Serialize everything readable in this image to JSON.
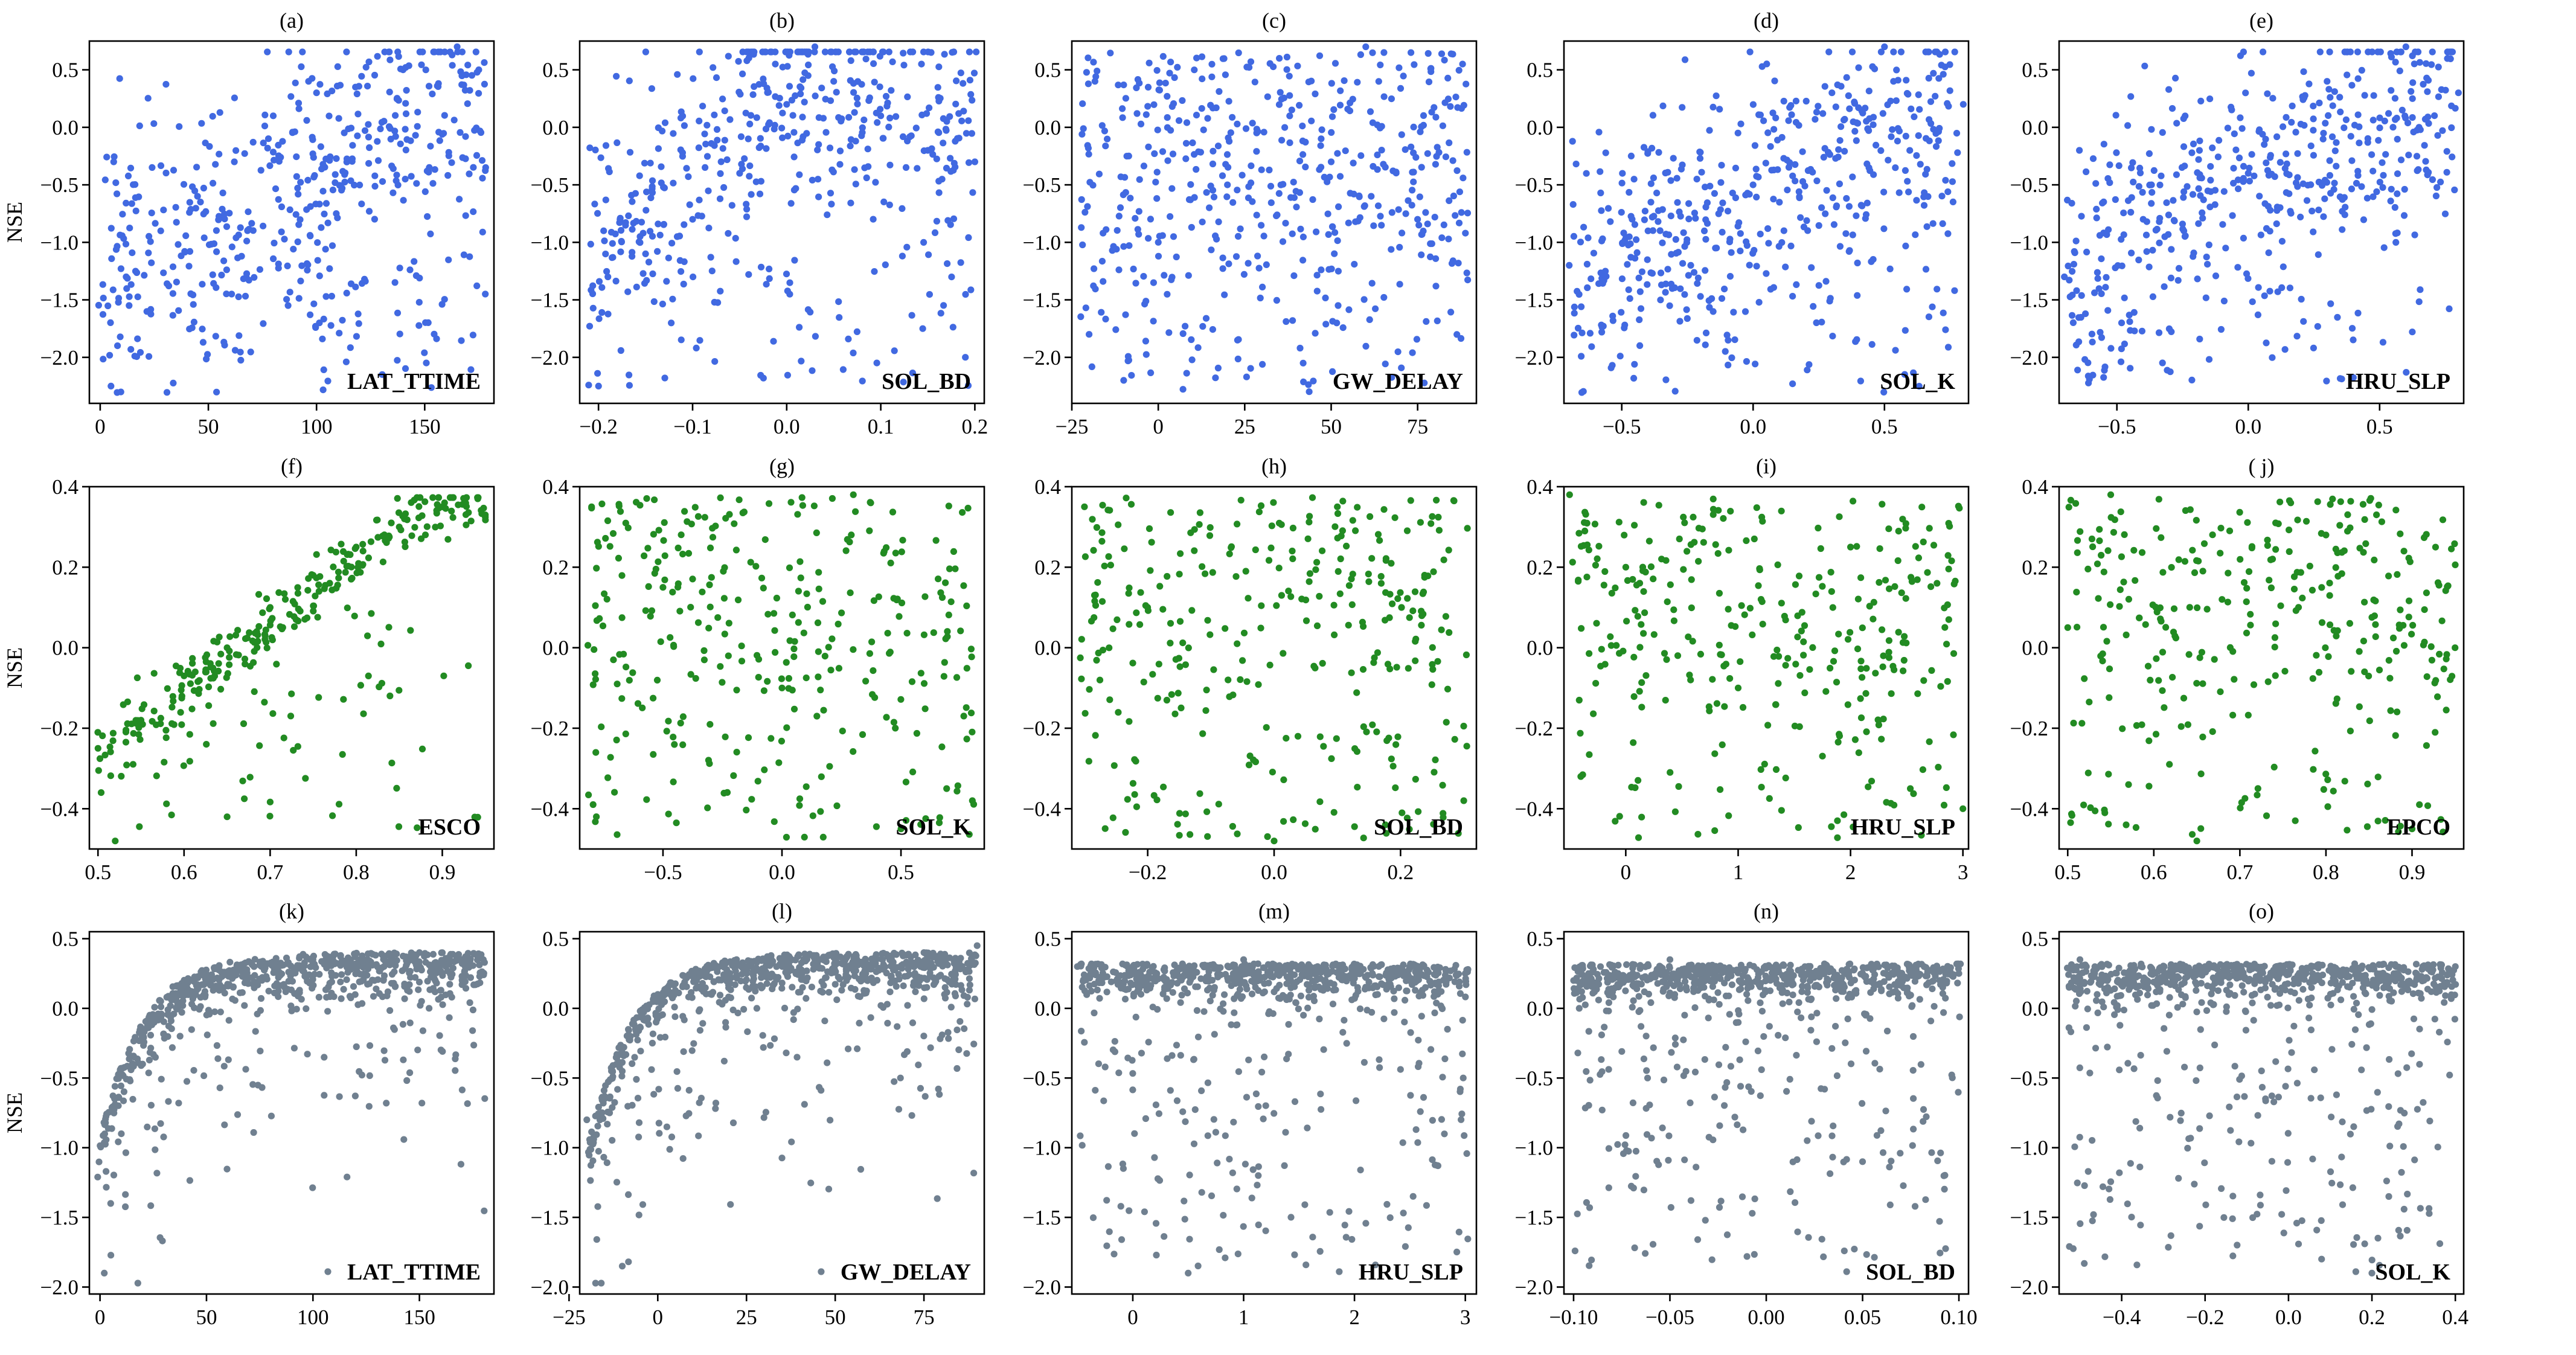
{
  "figure": {
    "ylabel": "NSE",
    "dot_radius": 5.6
  },
  "rows": [
    {
      "color": "#4169e1",
      "ylim": [
        -2.4,
        0.75
      ],
      "yticks": [
        0.5,
        0.0,
        -0.5,
        -1.0,
        -1.5,
        -2.0
      ]
    },
    {
      "color": "#228b22",
      "ylim": [
        -0.5,
        0.4
      ],
      "yticks": [
        0.4,
        0.2,
        0.0,
        -0.2,
        -0.4
      ]
    },
    {
      "color": "#708090",
      "ylim": [
        -2.05,
        0.55
      ],
      "yticks": [
        0.5,
        0.0,
        -0.5,
        -1.0,
        -1.5,
        -2.0
      ]
    }
  ],
  "chart_data": [
    {
      "panel": "(a)",
      "type": "scatter",
      "title": "(a)",
      "legend": "LAT_TTIME",
      "row": 0,
      "xlim": [
        -5,
        182
      ],
      "xticks": [
        0,
        50,
        100,
        150
      ],
      "xtick_labels": [
        "0",
        "50",
        "100",
        "150"
      ],
      "shape": "rising",
      "n": 500,
      "noise": 0.2,
      "seed": 11,
      "points": [
        [
          5,
          -2.25
        ],
        [
          12,
          -1.3
        ],
        [
          28,
          -0.9
        ],
        [
          45,
          -0.6
        ],
        [
          62,
          -0.3
        ],
        [
          80,
          0.1
        ],
        [
          100,
          0.3
        ],
        [
          118,
          0.35
        ],
        [
          140,
          0.5
        ],
        [
          165,
          0.7
        ],
        [
          175,
          0.5
        ],
        [
          178,
          -1.45
        ]
      ]
    },
    {
      "panel": "(b)",
      "type": "scatter",
      "title": "(b)",
      "legend": "SOL_BD",
      "row": 0,
      "xlim": [
        -0.22,
        0.21
      ],
      "xticks": [
        -0.2,
        -0.1,
        0.0,
        0.1,
        0.2
      ],
      "xtick_labels": [
        "−0.2",
        "−0.1",
        "0.0",
        "0.1",
        "0.2"
      ],
      "shape": "hump",
      "n": 500,
      "noise": 0.2,
      "seed": 12,
      "points": [
        [
          -0.19,
          -1.3
        ],
        [
          -0.15,
          -1.1
        ],
        [
          -0.1,
          -0.8
        ],
        [
          -0.05,
          -0.4
        ],
        [
          0.0,
          0.2
        ],
        [
          0.03,
          0.7
        ],
        [
          0.05,
          0.4
        ],
        [
          0.1,
          0.1
        ],
        [
          0.15,
          -0.2
        ],
        [
          0.2,
          -0.3
        ],
        [
          -0.2,
          -2.25
        ]
      ]
    },
    {
      "panel": "(c)",
      "type": "scatter",
      "title": "(c)",
      "legend": "GW_DELAY",
      "row": 0,
      "xlim": [
        -25,
        92
      ],
      "xticks": [
        -25,
        0,
        25,
        50,
        75
      ],
      "xtick_labels": [
        "−25",
        "0",
        "25",
        "50",
        "75"
      ],
      "shape": "flat",
      "n": 500,
      "noise": 0.2,
      "seed": 13,
      "points": [
        [
          -20,
          -1.8
        ],
        [
          -10,
          -2.2
        ],
        [
          0,
          -1.0
        ],
        [
          20,
          -0.5
        ],
        [
          35,
          0.6
        ],
        [
          50,
          -0.3
        ],
        [
          60,
          0.7
        ],
        [
          75,
          -0.8
        ],
        [
          88,
          0.55
        ]
      ]
    },
    {
      "panel": "(d)",
      "type": "scatter",
      "title": "(d)",
      "legend": "SOL_K",
      "row": 0,
      "xlim": [
        -0.72,
        0.82
      ],
      "xticks": [
        -0.5,
        0.0,
        0.5
      ],
      "xtick_labels": [
        "−0.5",
        "0.0",
        "0.5"
      ],
      "shape": "slight",
      "n": 500,
      "noise": 0.2,
      "seed": 14,
      "points": [
        [
          -0.7,
          -1.2
        ],
        [
          -0.4,
          -0.9
        ],
        [
          0.0,
          -0.5
        ],
        [
          0.3,
          0.3
        ],
        [
          0.5,
          0.7
        ],
        [
          0.8,
          0.2
        ]
      ]
    },
    {
      "panel": "(e)",
      "type": "scatter",
      "title": "(e)",
      "legend": "HRU_SLP",
      "row": 0,
      "xlim": [
        -0.72,
        0.82
      ],
      "xticks": [
        -0.5,
        0.0,
        0.5
      ],
      "xtick_labels": [
        "−0.5",
        "0.0",
        "0.5"
      ],
      "shape": "slight",
      "n": 500,
      "noise": 0.2,
      "seed": 15,
      "points": [
        [
          -0.7,
          -1.3
        ],
        [
          -0.4,
          -0.8
        ],
        [
          0.0,
          -0.4
        ],
        [
          0.3,
          0.4
        ],
        [
          0.6,
          0.7
        ],
        [
          0.8,
          0.3
        ]
      ]
    },
    {
      "panel": "(f)",
      "type": "scatter",
      "title": "(f)",
      "legend": "ESCO",
      "row": 1,
      "xlim": [
        0.49,
        0.96
      ],
      "xticks": [
        0.5,
        0.6,
        0.7,
        0.8,
        0.9
      ],
      "xtick_labels": [
        "0.5",
        "0.6",
        "0.7",
        "0.8",
        "0.9"
      ],
      "shape": "linear",
      "n": 320,
      "noise": 0.2,
      "seed": 21,
      "points": [
        [
          0.5,
          -0.25
        ],
        [
          0.55,
          -0.18
        ],
        [
          0.6,
          -0.07
        ],
        [
          0.65,
          0.0
        ],
        [
          0.7,
          0.1
        ],
        [
          0.75,
          0.18
        ],
        [
          0.8,
          0.25
        ],
        [
          0.85,
          0.3
        ],
        [
          0.9,
          0.35
        ],
        [
          0.95,
          0.33
        ],
        [
          0.52,
          -0.48
        ],
        [
          0.65,
          -0.42
        ]
      ]
    },
    {
      "panel": "(g)",
      "type": "scatter",
      "title": "(g)",
      "legend": "SOL_K",
      "row": 1,
      "xlim": [
        -0.85,
        0.85
      ],
      "xticks": [
        -0.5,
        0.0,
        0.5
      ],
      "xtick_labels": [
        "−0.5",
        "0.0",
        "0.5"
      ],
      "shape": "flat",
      "n": 320,
      "noise": 0.2,
      "seed": 22,
      "points": [
        [
          -0.8,
          0.35
        ],
        [
          -0.5,
          0.15
        ],
        [
          0.0,
          -0.1
        ],
        [
          0.3,
          0.38
        ],
        [
          0.5,
          -0.45
        ],
        [
          0.8,
          -0.38
        ]
      ]
    },
    {
      "panel": "(h)",
      "type": "scatter",
      "title": "(h)",
      "legend": "SOL_BD",
      "row": 1,
      "xlim": [
        -0.32,
        0.32
      ],
      "xticks": [
        -0.2,
        0.0,
        0.2
      ],
      "xtick_labels": [
        "−0.2",
        "0.0",
        "0.2"
      ],
      "shape": "flat",
      "n": 320,
      "noise": 0.2,
      "seed": 23,
      "points": [
        [
          -0.3,
          0.35
        ],
        [
          -0.2,
          0.1
        ],
        [
          0.0,
          -0.48
        ],
        [
          0.1,
          0.35
        ],
        [
          0.3,
          -0.38
        ]
      ]
    },
    {
      "panel": "(i)",
      "type": "scatter",
      "title": "(i)",
      "legend": "HRU_SLP",
      "row": 1,
      "xlim": [
        -0.55,
        3.05
      ],
      "xticks": [
        0,
        1,
        2,
        3
      ],
      "xtick_labels": [
        "0",
        "1",
        "2",
        "3"
      ],
      "shape": "flat",
      "n": 320,
      "noise": 0.2,
      "seed": 24,
      "points": [
        [
          -0.5,
          0.38
        ],
        [
          -0.4,
          -0.32
        ],
        [
          0.0,
          0.2
        ],
        [
          1.0,
          -0.1
        ],
        [
          2.0,
          0.25
        ],
        [
          3.0,
          -0.4
        ]
      ]
    },
    {
      "panel": "(j)",
      "type": "scatter",
      "title": "( j)",
      "legend": "EPCO",
      "row": 1,
      "xlim": [
        0.49,
        0.96
      ],
      "xticks": [
        0.5,
        0.6,
        0.7,
        0.8,
        0.9
      ],
      "xtick_labels": [
        "0.5",
        "0.6",
        "0.7",
        "0.8",
        "0.9"
      ],
      "shape": "flat",
      "n": 320,
      "noise": 0.2,
      "seed": 25,
      "points": [
        [
          0.5,
          0.05
        ],
        [
          0.55,
          0.38
        ],
        [
          0.65,
          -0.48
        ],
        [
          0.8,
          0.28
        ],
        [
          0.9,
          -0.45
        ],
        [
          0.95,
          0.0
        ]
      ]
    },
    {
      "panel": "(k)",
      "type": "scatter",
      "title": "(k)",
      "legend": "LAT_TTIME",
      "row": 2,
      "xlim": [
        -5,
        185
      ],
      "xticks": [
        0,
        50,
        100,
        150
      ],
      "xtick_labels": [
        "0",
        "50",
        "100",
        "150"
      ],
      "shape": "saturating",
      "n": 800,
      "noise": 0.2,
      "seed": 31,
      "points": [
        [
          2,
          -1.9
        ],
        [
          5,
          -1.4
        ],
        [
          10,
          -0.9
        ],
        [
          20,
          -0.4
        ],
        [
          40,
          0.1
        ],
        [
          60,
          0.25
        ],
        [
          100,
          0.35
        ],
        [
          150,
          0.4
        ],
        [
          180,
          0.35
        ]
      ]
    },
    {
      "panel": "(l)",
      "type": "scatter",
      "title": "(l)",
      "legend": "GW_DELAY",
      "row": 2,
      "xlim": [
        -22,
        92
      ],
      "xticks": [
        -25,
        0,
        25,
        50,
        75
      ],
      "xtick_labels": [
        "−25",
        "0",
        "25",
        "50",
        "75"
      ],
      "shape": "saturating",
      "n": 800,
      "noise": 0.2,
      "seed": 32,
      "points": [
        [
          -20,
          -0.8
        ],
        [
          -10,
          -1.85
        ],
        [
          0,
          0.1
        ],
        [
          25,
          0.3
        ],
        [
          50,
          0.35
        ],
        [
          75,
          0.4
        ],
        [
          90,
          0.45
        ]
      ]
    },
    {
      "panel": "(m)",
      "type": "scatter",
      "title": "(m)",
      "legend": "HRU_SLP",
      "row": 2,
      "xlim": [
        -0.55,
        3.1
      ],
      "xticks": [
        0,
        1,
        2,
        3
      ],
      "xtick_labels": [
        "0",
        "1",
        "2",
        "3"
      ],
      "shape": "topheavy",
      "n": 800,
      "noise": 0.2,
      "seed": 33,
      "points": [
        [
          -0.5,
          0.3
        ],
        [
          0.5,
          -1.9
        ],
        [
          1.0,
          0.35
        ],
        [
          2.0,
          0.3
        ],
        [
          3.0,
          0.25
        ]
      ]
    },
    {
      "panel": "(n)",
      "type": "scatter",
      "title": "(n)",
      "legend": "SOL_BD",
      "row": 2,
      "xlim": [
        -0.105,
        0.105
      ],
      "xticks": [
        -0.1,
        -0.05,
        0.0,
        0.05,
        0.1
      ],
      "xtick_labels": [
        "−0.10",
        "−0.05",
        "0.00",
        "0.05",
        "0.10"
      ],
      "shape": "topheavy",
      "n": 800,
      "noise": 0.2,
      "seed": 34,
      "points": [
        [
          -0.1,
          0.2
        ],
        [
          -0.05,
          0.35
        ],
        [
          0.0,
          0.3
        ],
        [
          0.05,
          -1.1
        ],
        [
          0.1,
          0.25
        ]
      ]
    },
    {
      "panel": "(o)",
      "type": "scatter",
      "title": "(o)",
      "legend": "SOL_K",
      "row": 2,
      "xlim": [
        -0.55,
        0.42
      ],
      "xticks": [
        -0.4,
        -0.2,
        0.0,
        0.2,
        0.4
      ],
      "xtick_labels": [
        "−0.4",
        "−0.2",
        "0.0",
        "0.2",
        "0.4"
      ],
      "shape": "topheavy",
      "n": 800,
      "noise": 0.2,
      "seed": 35,
      "points": [
        [
          -0.5,
          0.35
        ],
        [
          -0.2,
          0.3
        ],
        [
          0.0,
          0.25
        ],
        [
          0.2,
          -1.9
        ],
        [
          0.4,
          0.3
        ]
      ]
    }
  ]
}
